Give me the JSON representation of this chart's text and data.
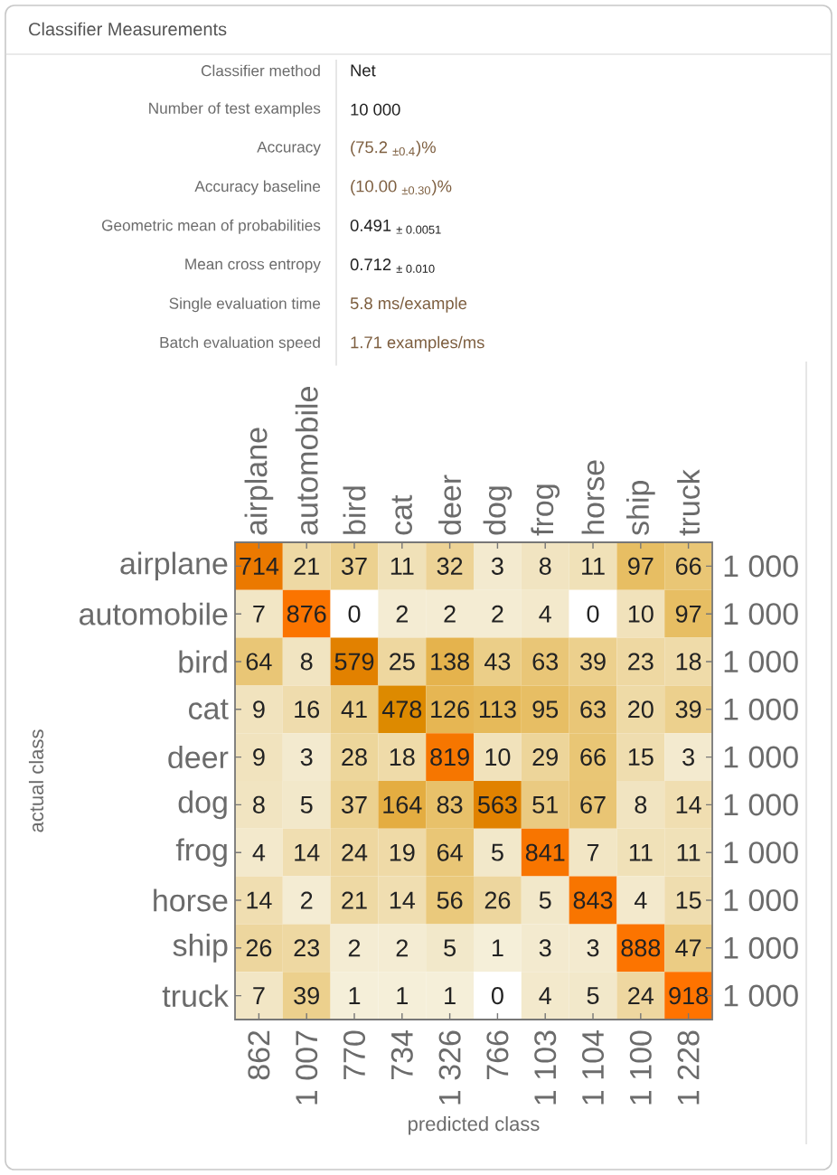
{
  "chart_data": [
    {
      "type": "other",
      "title": "Classifier Measurements",
      "annotations": [
        "Classifier method",
        "Net",
        "Number of test examples",
        "10 000",
        "Accuracy",
        "(75.2 $_{±0.4}$)%",
        "Accuracy baseline",
        "(10.00 $_{±0.30}$)%",
        "Geometric mean of probabilities",
        "0.491 $_{± 0.0051}$",
        "Mean cross entropy",
        "0.712 $_{± 0.010}$",
        "Single evaluation time",
        "5.8 ms/example",
        "Batch evaluation speed",
        "1.71 examples/ms"
      ]
    },
    {
      "type": "heatmap",
      "xlabel": "predicted class",
      "ylabel": "actual class",
      "categories": [
        "airplane",
        "automobile",
        "bird",
        "cat",
        "deer",
        "dog",
        "frog",
        "horse",
        "ship",
        "truck"
      ],
      "y_categories": [
        "airplane",
        "automobile",
        "bird",
        "cat",
        "deer",
        "dog",
        "frog",
        "horse",
        "ship",
        "truck"
      ],
      "y2_categories": [
        "1 000",
        "1 000",
        "1 000",
        "1 000",
        "1 000",
        "1 000",
        "1 000",
        "1 000",
        "1 000",
        "1 000"
      ],
      "cells": [
        [
          714,
          21,
          37,
          11,
          32,
          3,
          8,
          11,
          97,
          66
        ],
        [
          7,
          876,
          0,
          2,
          2,
          2,
          4,
          0,
          10,
          97
        ],
        [
          64,
          8,
          579,
          25,
          138,
          43,
          63,
          39,
          23,
          18
        ],
        [
          9,
          16,
          41,
          478,
          126,
          113,
          95,
          63,
          20,
          39
        ],
        [
          9,
          3,
          28,
          18,
          819,
          10,
          29,
          66,
          15,
          3
        ],
        [
          8,
          5,
          37,
          164,
          83,
          563,
          51,
          67,
          8,
          14
        ],
        [
          4,
          14,
          24,
          19,
          64,
          5,
          841,
          7,
          11,
          11
        ],
        [
          14,
          2,
          21,
          14,
          56,
          26,
          5,
          843,
          4,
          15
        ],
        [
          26,
          23,
          2,
          2,
          5,
          1,
          3,
          3,
          888,
          47
        ],
        [
          7,
          39,
          1,
          1,
          1,
          0,
          4,
          5,
          24,
          918
        ]
      ],
      "data_labels": true,
      "annotations": [
        "862",
        "1 007",
        "770",
        "734",
        "1 326",
        "766",
        "1 103",
        "1 104",
        "1 100",
        "1 228"
      ]
    }
  ]
}
